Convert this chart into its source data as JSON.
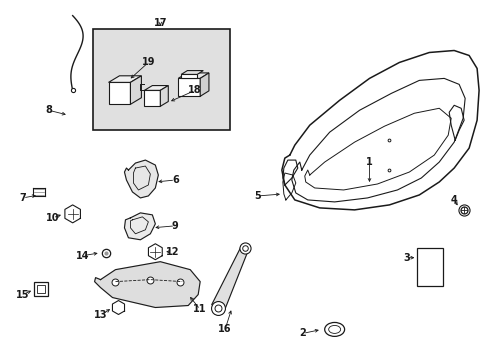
{
  "bg_color": "#ffffff",
  "line_color": "#1a1a1a",
  "fig_width": 4.89,
  "fig_height": 3.6,
  "dpi": 100,
  "inset_bg": "#e0e0e0"
}
